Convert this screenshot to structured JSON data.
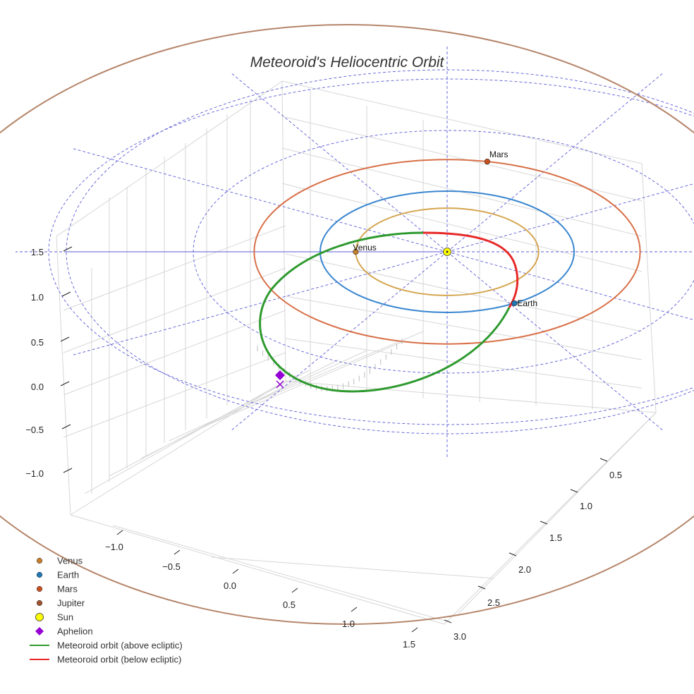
{
  "chart_data": {
    "type": "3d-line",
    "title": "Meteoroid's Heliocentric Orbit",
    "grid": true,
    "legend_position": "bottom-left",
    "axes": {
      "x": {
        "ticks": [
          "−1.0",
          "−0.5",
          "0.0",
          "0.5",
          "1.0",
          "1.5"
        ]
      },
      "y": {
        "ticks": [
          "0.5",
          "1.0",
          "1.5",
          "2.0",
          "2.5",
          "3.0"
        ]
      },
      "z": {
        "ticks": [
          "1.5",
          "1.0",
          "0.5",
          "0.0",
          "−0.5",
          "−1.0"
        ]
      }
    },
    "bodies": [
      {
        "name": "Venus",
        "orbit_radius_au": 0.72,
        "marker": "circle",
        "color": "#c57f2a",
        "orbit_color": "#d4a54f",
        "show_label": true
      },
      {
        "name": "Earth",
        "orbit_radius_au": 1.0,
        "marker": "circle",
        "color": "#1f77b4",
        "orbit_color": "#3a86cf",
        "show_label": true
      },
      {
        "name": "Mars",
        "orbit_radius_au": 1.52,
        "marker": "circle",
        "color": "#c9501e",
        "orbit_color": "#d87048",
        "show_label": true
      },
      {
        "name": "Jupiter",
        "orbit_radius_au": 5.2,
        "marker": "circle",
        "color": "#a0522d",
        "orbit_color": "#b5856a",
        "show_label": false
      },
      {
        "name": "Sun",
        "orbit_radius_au": 0,
        "marker": "circle",
        "color": "#ffff00",
        "show_label": false
      }
    ],
    "meteoroid": {
      "perihelion_au": 0.9,
      "aphelion_au": 2.0,
      "aphelion_marker": {
        "name": "Aphelion",
        "marker": "diamond",
        "color": "#9400d3"
      },
      "series": [
        {
          "name": "Meteoroid orbit (above ecliptic)",
          "color": "#2e9a2e"
        },
        {
          "name": "Meteoroid orbit (below ecliptic)",
          "color": "#e82828"
        }
      ]
    },
    "reference_grid": {
      "style": "dashed",
      "color": "#5b5bd6",
      "rings_au": [
        2,
        3
      ]
    }
  },
  "legend": [
    {
      "label": "Venus",
      "symbol": "circle",
      "color": "#c57f2a"
    },
    {
      "label": "Earth",
      "symbol": "circle",
      "color": "#1f77b4"
    },
    {
      "label": "Mars",
      "symbol": "circle",
      "color": "#c9501e"
    },
    {
      "label": "Jupiter",
      "symbol": "circle",
      "color": "#a0522d"
    },
    {
      "label": "Sun",
      "symbol": "circle-large",
      "color": "#ffff00"
    },
    {
      "label": "Aphelion",
      "symbol": "diamond",
      "color": "#9400d3"
    },
    {
      "label": "Meteoroid orbit (above ecliptic)",
      "symbol": "line",
      "color": "#2e9a2e"
    },
    {
      "label": "Meteoroid orbit (below ecliptic)",
      "symbol": "line",
      "color": "#e82828"
    }
  ]
}
